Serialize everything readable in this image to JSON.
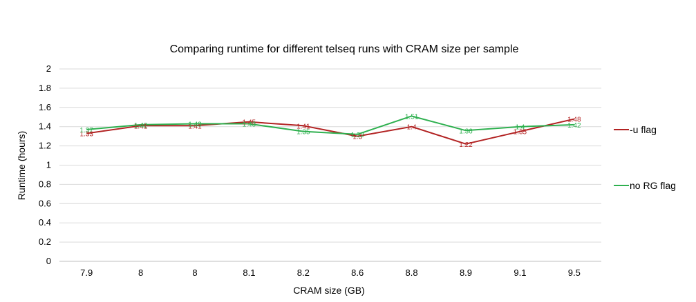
{
  "chart_data": {
    "type": "line",
    "title": "Comparing runtime for different telseq runs with CRAM size per sample",
    "xlabel": "CRAM size (GB)",
    "ylabel": "Runtime (hours)",
    "categories": [
      "7.9",
      "8",
      "8",
      "8.1",
      "8.2",
      "8.6",
      "8.8",
      "8.9",
      "9.1",
      "9.5"
    ],
    "ylim": [
      0,
      2
    ],
    "yticks": [
      "0",
      "0.2",
      "0.4",
      "0.6",
      "0.8",
      "1",
      "1.2",
      "1.4",
      "1.6",
      "1.8",
      "2"
    ],
    "grid": "horizontal",
    "legend_position": "right",
    "series": [
      {
        "name": "-u flag",
        "color": "#b22222",
        "values": [
          1.33,
          1.41,
          1.41,
          1.45,
          1.41,
          1.3,
          1.4,
          1.22,
          1.35,
          1.48
        ],
        "labels": [
          "1.33",
          "1.41",
          "1.41",
          "1.45",
          "1.41",
          "1.3",
          "1.4",
          "1.22",
          "1.35",
          "1.48"
        ]
      },
      {
        "name": "no RG flag",
        "color": "#2eb04f",
        "values": [
          1.37,
          1.42,
          1.43,
          1.43,
          1.35,
          1.32,
          1.51,
          1.36,
          1.4,
          1.42
        ],
        "labels": [
          "1.37",
          "1.42",
          "1.43",
          "1.43",
          "1.35",
          "1.32",
          "1.51",
          "1.36",
          "1.4",
          "1.42"
        ]
      }
    ]
  }
}
